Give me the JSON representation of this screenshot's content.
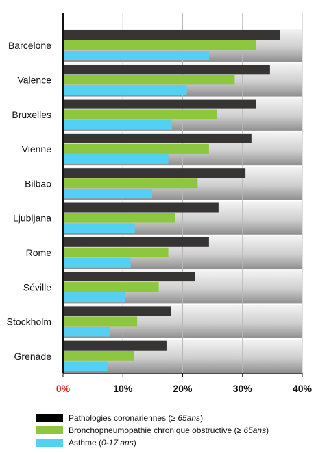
{
  "chart_data": {
    "type": "bar",
    "orientation": "horizontal",
    "categories": [
      "Barcelone",
      "Valence",
      "Bruxelles",
      "Vienne",
      "Bilbao",
      "Ljubljana",
      "Rome",
      "Séville",
      "Stockholm",
      "Grenade"
    ],
    "series": [
      {
        "name": "Pathologies coronariennes (≥ 65ans)",
        "color": "#373434",
        "values": [
          36.3,
          34.6,
          32.3,
          31.5,
          30.5,
          26.0,
          24.4,
          22.1,
          18.1,
          17.3
        ]
      },
      {
        "name": "Bronchopneumopathie chronique obstructive (≥ 65ans)",
        "color": "#8dc63f",
        "values": [
          32.3,
          28.7,
          25.7,
          24.4,
          22.5,
          18.7,
          17.6,
          16.0,
          12.4,
          11.9
        ]
      },
      {
        "name": "Asthme (0-17 ans)",
        "color": "#54d0f5",
        "values": [
          24.4,
          20.7,
          18.2,
          17.6,
          14.9,
          12.0,
          11.3,
          10.4,
          7.8,
          7.4
        ]
      }
    ],
    "xlim": [
      0,
      40
    ],
    "xticks": [
      "0%",
      "10%",
      "20%",
      "30%",
      "40%"
    ],
    "zero_tick_color": "#e02020",
    "grid": true,
    "legend_position": "bottom"
  },
  "legend": [
    {
      "swatch": "#000000",
      "label": "Pathologies coronariennes (",
      "sym": "≥ ",
      "italic": "65ans",
      "close": ")"
    },
    {
      "swatch": "#8dc63f",
      "label": "Bronchopneumopathie chronique obstructive (",
      "sym": "≥ ",
      "italic": "65ans",
      "close": ")"
    },
    {
      "swatch": "#54d0f5",
      "label": "Asthme (",
      "sym": "",
      "italic": "0-17 ans",
      "close": ")"
    }
  ]
}
